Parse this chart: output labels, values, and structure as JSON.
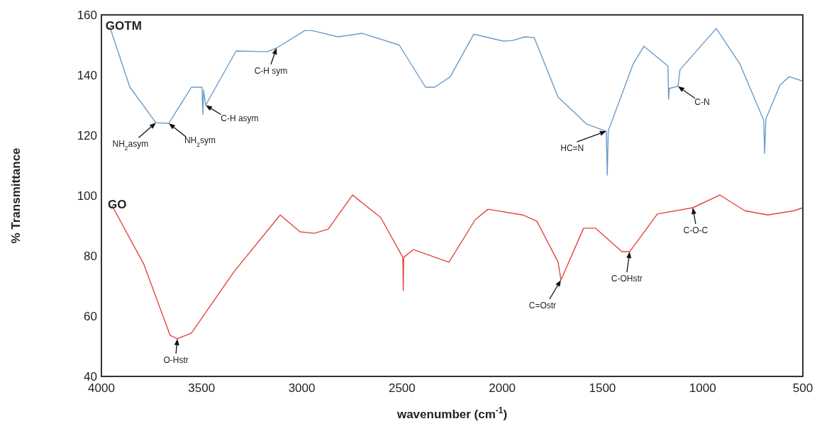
{
  "chart_data": {
    "type": "line",
    "xlabel": "wavenumber (cm$^{-1}$)",
    "ylabel": "% Transmittance",
    "xlim": [
      4000,
      500
    ],
    "xticks": [
      4000,
      3500,
      3000,
      2500,
      2000,
      1500,
      1000,
      500
    ],
    "ylim": [
      40,
      160
    ],
    "yticks": [
      40,
      60,
      80,
      100,
      120,
      140,
      160
    ],
    "grid": false,
    "series": [
      {
        "name": "GOTM",
        "color": "#6a9bc8",
        "x": [
          3958,
          3858,
          3728,
          3664,
          3551,
          3498,
          3494,
          3490,
          3480,
          3328,
          3172,
          3126,
          2985,
          2949,
          2818,
          2701,
          2514,
          2383,
          2337,
          2259,
          2142,
          1994,
          1948,
          1887,
          1841,
          1721,
          1580,
          1481,
          1476,
          1471,
          1346,
          1293,
          1173,
          1170,
          1166,
          1123,
          1113,
          932,
          815,
          695,
          691,
          684,
          614,
          568,
          500
        ],
        "values": [
          156,
          136,
          124.2,
          124,
          136,
          136,
          127,
          135,
          130,
          148,
          147.8,
          149,
          154.8,
          154.8,
          152.7,
          153.9,
          150,
          136,
          136,
          139.5,
          153.6,
          151.3,
          151.5,
          152.7,
          152.5,
          132.7,
          123.8,
          121.4,
          106.8,
          121.5,
          143.8,
          149.6,
          143,
          132,
          135.6,
          136.3,
          141.8,
          155.5,
          143.8,
          125,
          114,
          125.6,
          136.7,
          139.5,
          138
        ]
      },
      {
        "name": "GO",
        "color": "#e0453f",
        "x": [
          3947,
          3788,
          3657,
          3621,
          3551,
          3338,
          3108,
          3009,
          2938,
          2868,
          2747,
          2606,
          2496,
          2494,
          2492,
          2443,
          2266,
          2135,
          2071,
          1898,
          1827,
          1721,
          1707,
          1594,
          1534,
          1403,
          1364,
          1226,
          1049,
          914,
          790,
          674,
          543,
          500
        ],
        "values": [
          96.7,
          77.2,
          53.6,
          52.5,
          54.4,
          74.8,
          93.6,
          88,
          87.5,
          88.9,
          100.2,
          92.7,
          79.5,
          68.5,
          79.5,
          82.1,
          77.9,
          92,
          95.5,
          93.6,
          91.5,
          77.9,
          72,
          89.2,
          89.2,
          81.4,
          81.4,
          93.9,
          96,
          100.2,
          95,
          93.6,
          95,
          96
        ]
      }
    ],
    "annotations": [
      {
        "text": "NH$_{2}$asym",
        "x": 3728,
        "y": 124.2
      },
      {
        "text": "NH$_{2}$sym",
        "x": 3664,
        "y": 124
      },
      {
        "text": "C-H asym",
        "x": 3480,
        "y": 130
      },
      {
        "text": "C-H sym",
        "x": 3126,
        "y": 149
      },
      {
        "text": "HC=N",
        "x": 1481,
        "y": 121.4
      },
      {
        "text": "C-N",
        "x": 1123,
        "y": 136.3
      },
      {
        "text": "O-Hstr",
        "x": 3621,
        "y": 52.5
      },
      {
        "text": "C=Ostr",
        "x": 1707,
        "y": 72
      },
      {
        "text": "C-OHstr",
        "x": 1364,
        "y": 81.4
      },
      {
        "text": "C-O-C",
        "x": 1049,
        "y": 96
      }
    ]
  }
}
